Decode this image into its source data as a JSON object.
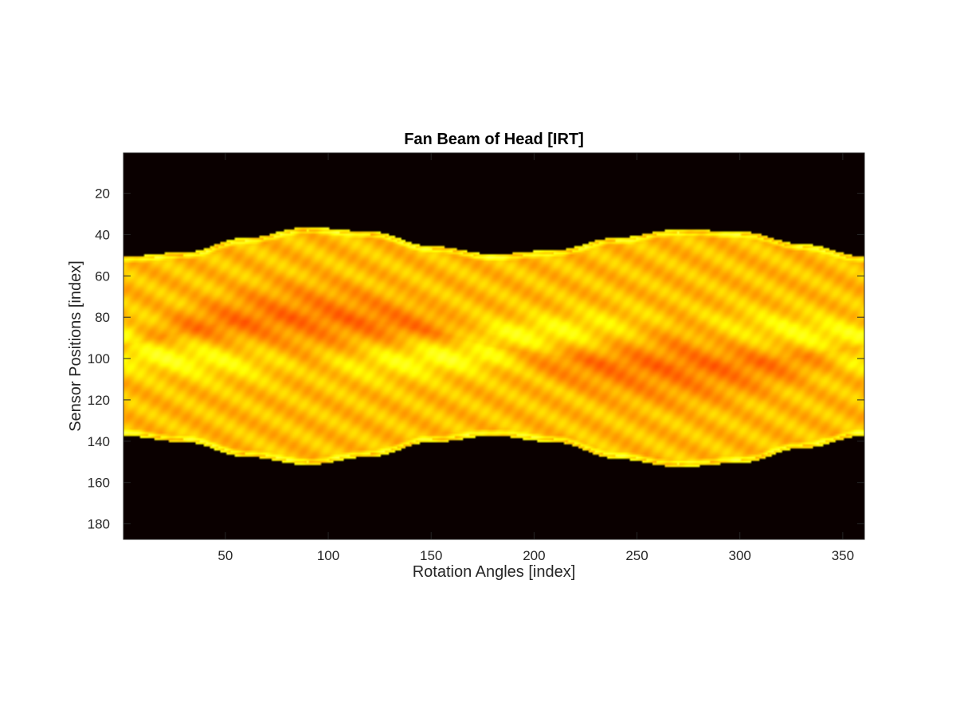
{
  "chart_data": {
    "type": "heatmap",
    "title": "Fan Beam of Head [IRT]",
    "xlabel": "Rotation Angles [index]",
    "ylabel": "Sensor Positions [index]",
    "xlim": [
      0.5,
      360.5
    ],
    "ylim": [
      0.5,
      187.5
    ],
    "y_reversed": true,
    "x_ticks": [
      50,
      100,
      150,
      200,
      250,
      300,
      350
    ],
    "x_tick_labels": [
      "50",
      "100",
      "150",
      "200",
      "250",
      "300",
      "350"
    ],
    "y_ticks": [
      20,
      40,
      60,
      80,
      100,
      120,
      140,
      160,
      180
    ],
    "y_tick_labels": [
      "20",
      "40",
      "60",
      "80",
      "100",
      "120",
      "140",
      "160",
      "180"
    ],
    "colormap": "hot",
    "colormap_stops": [
      "#0a0000",
      "#ff1a00",
      "#ffff00",
      "#ffffff"
    ],
    "grid": false,
    "outer_boundary": {
      "top": [
        {
          "x": 1,
          "y": 51
        },
        {
          "x": 30,
          "y": 49
        },
        {
          "x": 60,
          "y": 42
        },
        {
          "x": 90,
          "y": 37
        },
        {
          "x": 120,
          "y": 39
        },
        {
          "x": 150,
          "y": 46
        },
        {
          "x": 180,
          "y": 50
        },
        {
          "x": 210,
          "y": 48
        },
        {
          "x": 240,
          "y": 42
        },
        {
          "x": 270,
          "y": 38
        },
        {
          "x": 300,
          "y": 39
        },
        {
          "x": 330,
          "y": 45
        },
        {
          "x": 360,
          "y": 51
        }
      ],
      "bottom": [
        {
          "x": 1,
          "y": 137
        },
        {
          "x": 30,
          "y": 140
        },
        {
          "x": 60,
          "y": 147
        },
        {
          "x": 90,
          "y": 151
        },
        {
          "x": 120,
          "y": 147
        },
        {
          "x": 150,
          "y": 140
        },
        {
          "x": 180,
          "y": 137
        },
        {
          "x": 210,
          "y": 140
        },
        {
          "x": 240,
          "y": 148
        },
        {
          "x": 270,
          "y": 152
        },
        {
          "x": 300,
          "y": 150
        },
        {
          "x": 330,
          "y": 143
        },
        {
          "x": 360,
          "y": 137
        }
      ]
    }
  }
}
